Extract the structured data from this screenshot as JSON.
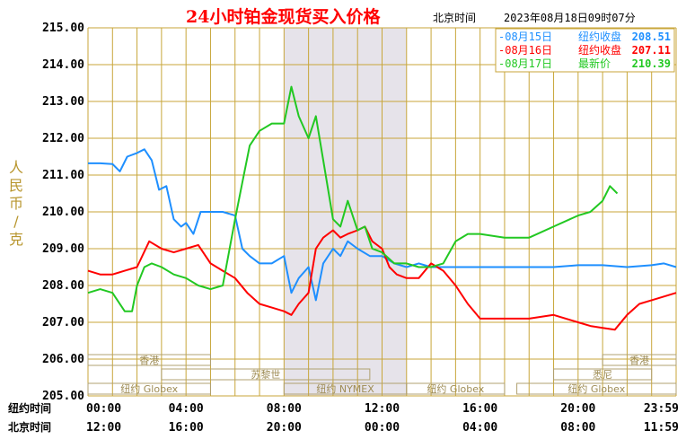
{
  "header": {
    "title": "24小时铂金现货买入价格",
    "tz_label": "北京时间",
    "timestamp": "2023年08月18日09时07分"
  },
  "colors": {
    "background": "#ffffff",
    "grid": "#c8a63a",
    "axis_text": "#000000",
    "ylabel": "#b8962e",
    "title": "#ff0000",
    "session_band": "#e6e3ea",
    "series_0815": "#1e8fff",
    "series_0816": "#ff0000",
    "series_0817": "#22c822",
    "session_box": "#b0a070",
    "session_text": "#9e8c55"
  },
  "chart_data": {
    "type": "line",
    "ylabel": "人民币/克",
    "ylim": [
      205,
      215
    ],
    "yticks": [
      "215.00",
      "214.00",
      "213.00",
      "212.00",
      "211.00",
      "210.00",
      "209.00",
      "208.00",
      "207.00",
      "206.00",
      "205.00"
    ],
    "grid": true,
    "legend_position": "top-right",
    "x_rows": [
      {
        "name": "纽约时间",
        "ticks": [
          "00:00",
          "04:00",
          "08:00",
          "12:00",
          "16:00",
          "20:00",
          "23:59"
        ]
      },
      {
        "name": "北京时间",
        "ticks": [
          "12:00",
          "16:00",
          "20:00",
          "00:00",
          "04:00",
          "08:00",
          "11:59"
        ]
      }
    ],
    "x_hours": [
      0,
      4,
      8,
      12,
      16,
      20,
      24
    ],
    "shaded_band_hours": [
      8,
      13
    ],
    "sessions": [
      {
        "label": "香港",
        "start": 0,
        "end": 5
      },
      {
        "label": "苏黎世",
        "start": 3,
        "end": 11.5
      },
      {
        "label": "纽约 Globex",
        "start": 0,
        "end": 5
      },
      {
        "label": "纽约 NYMEX",
        "start": 8,
        "end": 13
      },
      {
        "label": "纽约 Globex",
        "start": 13,
        "end": 17
      },
      {
        "label": "悉尼",
        "start": 19,
        "end": 23
      },
      {
        "label": "香港",
        "start": 21,
        "end": 24
      },
      {
        "label": "纽约 Globex",
        "start": 17.5,
        "end": 24
      }
    ],
    "series": [
      {
        "name": "08月15日",
        "label": "纽约收盘",
        "value": "208.51",
        "color": "#1e8fff",
        "x": [
          0,
          0.5,
          1,
          1.3,
          1.6,
          2,
          2.3,
          2.6,
          2.9,
          3.2,
          3.5,
          3.8,
          4,
          4.3,
          4.6,
          5,
          5.5,
          6,
          6.3,
          6.6,
          7,
          7.5,
          8,
          8.3,
          8.6,
          9,
          9.3,
          9.6,
          10,
          10.3,
          10.6,
          11,
          11.5,
          12,
          12.5,
          13,
          13.5,
          14,
          15,
          16,
          17,
          18,
          19,
          20,
          21,
          22,
          23,
          23.5,
          24
        ],
        "y": [
          211.32,
          211.32,
          211.3,
          211.1,
          211.5,
          211.6,
          211.7,
          211.4,
          210.6,
          210.7,
          209.8,
          209.6,
          209.7,
          209.4,
          210.0,
          210.0,
          210.0,
          209.9,
          209.0,
          208.8,
          208.6,
          208.6,
          208.8,
          207.8,
          208.2,
          208.5,
          207.6,
          208.6,
          209.0,
          208.8,
          209.2,
          209.0,
          208.8,
          208.8,
          208.6,
          208.5,
          208.6,
          208.5,
          208.5,
          208.5,
          208.5,
          208.5,
          208.5,
          208.55,
          208.55,
          208.5,
          208.55,
          208.6,
          208.5
        ]
      },
      {
        "name": "08月16日",
        "label": "纽约收盘",
        "value": "207.11",
        "color": "#ff0000",
        "x": [
          0,
          0.5,
          1,
          1.5,
          2,
          2.5,
          3,
          3.5,
          4,
          4.5,
          5,
          5.5,
          6,
          6.5,
          7,
          7.5,
          8,
          8.3,
          8.6,
          9,
          9.3,
          9.6,
          10,
          10.3,
          10.6,
          11,
          11.3,
          11.6,
          12,
          12.3,
          12.6,
          13,
          13.5,
          14,
          14.5,
          15,
          15.5,
          16,
          17,
          18,
          19,
          20,
          20.5,
          21,
          21.5,
          22,
          22.5,
          23,
          23.5,
          24
        ],
        "y": [
          208.4,
          208.3,
          208.3,
          208.4,
          208.5,
          209.2,
          209.0,
          208.9,
          209.0,
          209.1,
          208.6,
          208.4,
          208.2,
          207.8,
          207.5,
          207.4,
          207.3,
          207.2,
          207.5,
          207.8,
          209.0,
          209.3,
          209.5,
          209.3,
          209.4,
          209.5,
          209.6,
          209.2,
          209.0,
          208.5,
          208.3,
          208.2,
          208.2,
          208.6,
          208.4,
          208.0,
          207.5,
          207.1,
          207.1,
          207.1,
          207.2,
          207.0,
          206.9,
          206.85,
          206.8,
          207.2,
          207.5,
          207.6,
          207.7,
          207.8
        ]
      },
      {
        "name": "08月17日",
        "label": "最新价",
        "value": "210.39",
        "color": "#22c822",
        "x": [
          0,
          0.5,
          1,
          1.5,
          1.8,
          2,
          2.3,
          2.6,
          3,
          3.5,
          4,
          4.5,
          5,
          5.5,
          6,
          6.3,
          6.6,
          7,
          7.5,
          8,
          8.3,
          8.6,
          9,
          9.3,
          9.6,
          10,
          10.3,
          10.6,
          11,
          11.3,
          11.6,
          12,
          12.5,
          13,
          13.5,
          14,
          14.5,
          15,
          15.5,
          16,
          17,
          18,
          19,
          20,
          20.5,
          21,
          21.3,
          21.6
        ],
        "y": [
          207.8,
          207.9,
          207.8,
          207.3,
          207.3,
          208.0,
          208.5,
          208.6,
          208.5,
          208.3,
          208.2,
          208.0,
          207.9,
          208.0,
          209.8,
          210.8,
          211.8,
          212.2,
          212.4,
          212.4,
          213.4,
          212.6,
          212.0,
          212.6,
          211.4,
          209.8,
          209.6,
          210.3,
          209.5,
          209.6,
          209.0,
          208.9,
          208.6,
          208.6,
          208.5,
          208.5,
          208.6,
          209.2,
          209.4,
          209.4,
          209.3,
          209.3,
          209.6,
          209.9,
          210.0,
          210.3,
          210.7,
          210.5
        ]
      }
    ]
  },
  "legend": {
    "entries": [
      {
        "date": "08月15日",
        "label": "纽约收盘",
        "value": "208.51"
      },
      {
        "date": "08月16日",
        "label": "纽约收盘",
        "value": "207.11"
      },
      {
        "date": "08月17日",
        "label": "最新价",
        "value": "210.39"
      }
    ]
  }
}
